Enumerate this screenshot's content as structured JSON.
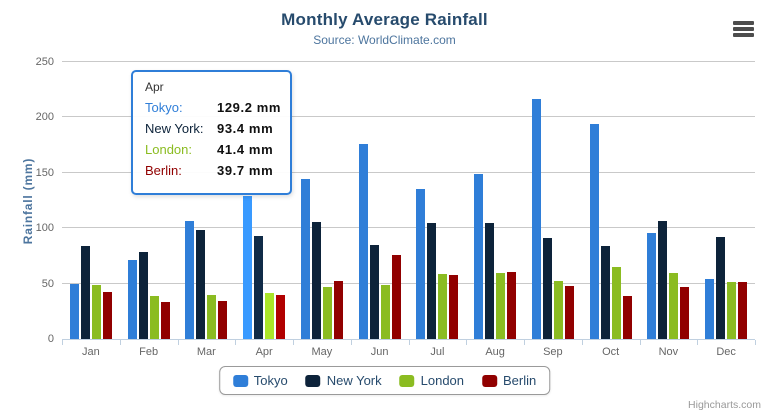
{
  "chart": {
    "title": "Monthly Average Rainfall",
    "subtitle": "Source: WorldClimate.com",
    "yaxis_title": "Rainfall (mm)",
    "credits": "Highcharts.com"
  },
  "colors": {
    "tokyo": "#2f7ed8",
    "new_york": "#0d233a",
    "london": "#8bbc21",
    "berlin": "#910000",
    "title_text": "#274b6d",
    "subtitle_text": "#4d759e",
    "axis_label_text": "#666666",
    "grid_line": "#c9c9c9",
    "axis_line": "#c0d0e0",
    "tooltip_border": "#2f7ed8"
  },
  "chart_data": {
    "type": "bar",
    "title": "Monthly Average Rainfall",
    "subtitle": "Source: WorldClimate.com",
    "xlabel": "",
    "ylabel": "Rainfall (mm)",
    "ylim": [
      0,
      250
    ],
    "yticks": [
      0,
      50,
      100,
      150,
      200,
      250
    ],
    "grid": true,
    "legend_position": "bottom",
    "hovered_category": "Apr",
    "categories": [
      "Jan",
      "Feb",
      "Mar",
      "Apr",
      "May",
      "Jun",
      "Jul",
      "Aug",
      "Sep",
      "Oct",
      "Nov",
      "Dec"
    ],
    "series": [
      {
        "name": "Tokyo",
        "color": "#2f7ed8",
        "values": [
          49.9,
          71.5,
          106.4,
          129.2,
          144.0,
          176.0,
          135.6,
          148.5,
          216.4,
          194.1,
          95.6,
          54.4
        ]
      },
      {
        "name": "New York",
        "color": "#0d233a",
        "values": [
          83.6,
          78.8,
          98.5,
          93.4,
          106.0,
          84.5,
          105.0,
          104.3,
          91.2,
          83.5,
          106.6,
          92.3
        ]
      },
      {
        "name": "London",
        "color": "#8bbc21",
        "values": [
          48.9,
          38.8,
          39.3,
          41.4,
          47.0,
          48.3,
          59.0,
          59.6,
          52.4,
          65.2,
          59.3,
          51.2
        ]
      },
      {
        "name": "Berlin",
        "color": "#910000",
        "values": [
          42.4,
          33.2,
          34.5,
          39.7,
          52.6,
          75.5,
          57.4,
          60.4,
          47.6,
          39.1,
          46.8,
          51.1
        ]
      }
    ]
  },
  "tooltip": {
    "header": "Apr",
    "rows": [
      {
        "label": "Tokyo:",
        "value": "129.2 mm"
      },
      {
        "label": "New York:",
        "value": "93.4 mm"
      },
      {
        "label": "London:",
        "value": "41.4 mm"
      },
      {
        "label": "Berlin:",
        "value": "39.7 mm"
      }
    ]
  },
  "legend": {
    "items": [
      {
        "label": "Tokyo",
        "color": "#2f7ed8"
      },
      {
        "label": "New York",
        "color": "#0d233a"
      },
      {
        "label": "London",
        "color": "#8bbc21"
      },
      {
        "label": "Berlin",
        "color": "#910000"
      }
    ]
  },
  "icons": {
    "context_menu": "hamburger-menu"
  }
}
